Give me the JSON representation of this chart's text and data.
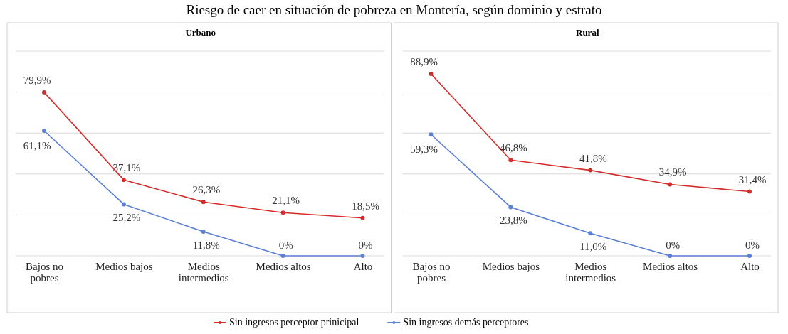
{
  "chart_data": [
    {
      "type": "line",
      "title": "Urbano",
      "categories": [
        "Bajos no pobres",
        "Medios bajos",
        "Medios intermedios",
        "Medios altos",
        "Alto"
      ],
      "ylim": [
        0,
        100
      ],
      "yticks": [
        {
          "value": 0,
          "label": null
        },
        {
          "value": 20,
          "label": null
        },
        {
          "value": 40,
          "label": null
        },
        {
          "value": 60,
          "label": null
        },
        {
          "value": 80,
          "label": null
        },
        {
          "value": 100,
          "label": null
        }
      ],
      "grid": "y",
      "tick_labels": "x",
      "marker": "circle",
      "legend": "bottom",
      "series": [
        {
          "name": "Sin ingresos perceptor prinicipal",
          "color": "#d62b2b",
          "values": [
            79.9,
            37.1,
            26.3,
            21.1,
            18.5
          ],
          "value_labels": [
            "79,9%",
            "37,1%",
            "26,3%",
            "21,1%",
            "18,5%"
          ]
        },
        {
          "name": "Sin ingresos demás perceptores",
          "color": "#5b7fd6",
          "values": [
            61.1,
            25.2,
            11.8,
            0,
            0
          ],
          "value_labels": [
            "61,1%",
            "25,2%",
            "11,8%",
            "0%",
            "0%"
          ]
        }
      ],
      "annotations": [
        "Riesgo de caer en situación de pobreza en Montería, según dominio y estrato"
      ]
    },
    {
      "type": "line",
      "title": "Rural",
      "categories": [
        "Bajos no pobres",
        "Medios bajos",
        "Medios intermedios",
        "Medios altos",
        "Alto"
      ],
      "ylim": [
        0,
        100
      ],
      "yticks": [
        {
          "value": 0,
          "label": null
        },
        {
          "value": 20,
          "label": null
        },
        {
          "value": 40,
          "label": null
        },
        {
          "value": 60,
          "label": null
        },
        {
          "value": 80,
          "label": null
        },
        {
          "value": 100,
          "label": null
        }
      ],
      "grid": "y",
      "tick_labels": "x",
      "marker": "circle",
      "series": [
        {
          "color": "#d62b2b",
          "values": [
            88.9,
            46.8,
            41.8,
            34.9,
            31.4
          ],
          "value_labels": [
            "88,9%",
            "46,8%",
            "41,8%",
            "34,9%",
            "31,4%"
          ]
        },
        {
          "color": "#5b7fd6",
          "values": [
            59.3,
            23.8,
            11.0,
            0,
            0
          ],
          "value_labels": [
            "59,3%",
            "23,8%",
            "11,0%",
            "0%",
            "0%"
          ]
        }
      ]
    }
  ]
}
